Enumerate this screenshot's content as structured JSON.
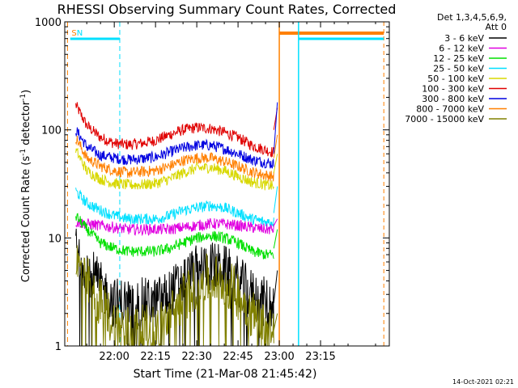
{
  "chart_data": {
    "type": "line",
    "title": "RHESSI Observing Summary Count Rates, Corrected",
    "xlabel": "Start Time (21-Mar-08 21:45:42)",
    "ylabel_parts": {
      "main": "Corrected Count Rate (s",
      "sup1": "-1",
      "mid": " detector",
      "sup2": "-1",
      "end": ")"
    },
    "yscale": "log",
    "ylim": [
      1,
      1000
    ],
    "xlim_minutes": [
      -18,
      100
    ],
    "x_tick_labels": [
      "22:00",
      "22:15",
      "22:30",
      "22:45",
      "23:00",
      "23:15"
    ],
    "x_tick_minutes": [
      0,
      15,
      30,
      45,
      60,
      75
    ],
    "y_tick_labels": [
      "1",
      "10",
      "100",
      "1000"
    ],
    "y_tick_values": [
      1,
      10,
      100,
      1000
    ],
    "timestamp": "14-Oct-2021 02:21",
    "legend": {
      "header": [
        "Det 1,3,4,5,6,9,",
        "Att 0"
      ],
      "entries": [
        {
          "label": "3 - 6 keV",
          "color": "#000000"
        },
        {
          "label": "6 - 12 keV",
          "color": "#e000e0"
        },
        {
          "label": "12 - 25 keV",
          "color": "#00e000"
        },
        {
          "label": "25 - 50 keV",
          "color": "#00e0ff"
        },
        {
          "label": "50 - 100 keV",
          "color": "#d8d800"
        },
        {
          "label": "100 - 300 keV",
          "color": "#e00000"
        },
        {
          "label": "300 - 800 keV",
          "color": "#0000e0"
        },
        {
          "label": "800 - 7000 keV",
          "color": "#ff8000"
        },
        {
          "label": "7000 - 15000 keV",
          "color": "#808000"
        }
      ]
    },
    "flags": [
      {
        "label": "S",
        "color": "#ff8000",
        "x_range_minutes": [
          -17,
          -16
        ]
      },
      {
        "label": "N",
        "color": "#00e0ff",
        "x_range_minutes": [
          -16,
          2
        ]
      }
    ],
    "saa_orange_minutes": [
      60,
      98
    ],
    "night_cyan_minutes": [
      67,
      98
    ],
    "series": [
      {
        "name": "100 - 300 keV",
        "color": "#e00000",
        "points": [
          [
            -14,
            170
          ],
          [
            -10,
            110
          ],
          [
            -5,
            85
          ],
          [
            0,
            75
          ],
          [
            5,
            73
          ],
          [
            10,
            75
          ],
          [
            15,
            80
          ],
          [
            20,
            90
          ],
          [
            25,
            100
          ],
          [
            30,
            105
          ],
          [
            35,
            103
          ],
          [
            40,
            95
          ],
          [
            45,
            85
          ],
          [
            50,
            72
          ],
          [
            55,
            65
          ],
          [
            58,
            62
          ]
        ]
      },
      {
        "name": "300 - 800 keV",
        "color": "#0000e0",
        "points": [
          [
            -14,
            100
          ],
          [
            -10,
            70
          ],
          [
            -5,
            58
          ],
          [
            0,
            55
          ],
          [
            5,
            53
          ],
          [
            10,
            54
          ],
          [
            15,
            56
          ],
          [
            20,
            62
          ],
          [
            25,
            68
          ],
          [
            30,
            72
          ],
          [
            35,
            72
          ],
          [
            40,
            67
          ],
          [
            45,
            60
          ],
          [
            50,
            53
          ],
          [
            55,
            50
          ],
          [
            58,
            48
          ]
        ]
      },
      {
        "name": "800 - 7000 keV",
        "color": "#ff8000",
        "points": [
          [
            -14,
            85
          ],
          [
            -10,
            55
          ],
          [
            -5,
            46
          ],
          [
            0,
            42
          ],
          [
            5,
            40
          ],
          [
            10,
            41
          ],
          [
            15,
            42
          ],
          [
            20,
            46
          ],
          [
            25,
            52
          ],
          [
            30,
            55
          ],
          [
            35,
            55
          ],
          [
            40,
            51
          ],
          [
            45,
            46
          ],
          [
            50,
            41
          ],
          [
            55,
            38
          ],
          [
            58,
            37
          ]
        ]
      },
      {
        "name": "50 - 100 keV",
        "color": "#d8d800",
        "points": [
          [
            -14,
            65
          ],
          [
            -10,
            42
          ],
          [
            -5,
            35
          ],
          [
            0,
            32
          ],
          [
            5,
            31
          ],
          [
            10,
            31
          ],
          [
            15,
            32
          ],
          [
            20,
            35
          ],
          [
            25,
            40
          ],
          [
            30,
            44
          ],
          [
            35,
            45
          ],
          [
            40,
            42
          ],
          [
            45,
            37
          ],
          [
            50,
            33
          ],
          [
            55,
            31
          ],
          [
            58,
            30
          ]
        ]
      },
      {
        "name": "25 - 50 keV",
        "color": "#00e0ff",
        "points": [
          [
            -14,
            27
          ],
          [
            -10,
            21
          ],
          [
            -5,
            18
          ],
          [
            0,
            16
          ],
          [
            5,
            15
          ],
          [
            10,
            15
          ],
          [
            15,
            15
          ],
          [
            20,
            16
          ],
          [
            25,
            18
          ],
          [
            30,
            19
          ],
          [
            35,
            20
          ],
          [
            40,
            19
          ],
          [
            45,
            17
          ],
          [
            50,
            15
          ],
          [
            55,
            14
          ],
          [
            58,
            14
          ]
        ]
      },
      {
        "name": "6 - 12 keV",
        "color": "#e000e0",
        "points": [
          [
            -14,
            14
          ],
          [
            -10,
            13.5
          ],
          [
            -5,
            13
          ],
          [
            0,
            12.5
          ],
          [
            5,
            12
          ],
          [
            10,
            12
          ],
          [
            15,
            12
          ],
          [
            20,
            12
          ],
          [
            25,
            12.5
          ],
          [
            30,
            13
          ],
          [
            35,
            13.5
          ],
          [
            40,
            13.5
          ],
          [
            45,
            13
          ],
          [
            50,
            12.5
          ],
          [
            55,
            12
          ],
          [
            58,
            12
          ]
        ]
      },
      {
        "name": "12 - 25 keV",
        "color": "#00e000",
        "points": [
          [
            -14,
            16
          ],
          [
            -10,
            12
          ],
          [
            -5,
            9
          ],
          [
            0,
            8
          ],
          [
            5,
            7.5
          ],
          [
            10,
            7.5
          ],
          [
            15,
            7.5
          ],
          [
            20,
            8
          ],
          [
            25,
            9
          ],
          [
            30,
            10
          ],
          [
            35,
            10.5
          ],
          [
            40,
            10
          ],
          [
            45,
            9
          ],
          [
            50,
            7.5
          ],
          [
            55,
            7
          ],
          [
            58,
            7
          ]
        ]
      },
      {
        "name": "3 - 6 keV",
        "color": "#000000",
        "points": [
          [
            -14,
            8
          ],
          [
            -10,
            5.5
          ],
          [
            -5,
            3.5
          ],
          [
            0,
            2.5
          ],
          [
            5,
            2.5
          ],
          [
            10,
            2.5
          ],
          [
            15,
            2.5
          ],
          [
            20,
            3
          ],
          [
            25,
            4
          ],
          [
            30,
            5
          ],
          [
            35,
            5.5
          ],
          [
            40,
            5
          ],
          [
            45,
            4
          ],
          [
            50,
            3
          ],
          [
            55,
            2.5
          ],
          [
            58,
            2.5
          ]
        ]
      },
      {
        "name": "7000 - 15000 keV",
        "color": "#808000",
        "points": [
          [
            -14,
            6
          ],
          [
            -10,
            4
          ],
          [
            -5,
            2.5
          ],
          [
            0,
            1.6
          ],
          [
            5,
            1.4
          ],
          [
            10,
            1.4
          ],
          [
            15,
            1.4
          ],
          [
            20,
            1.8
          ],
          [
            25,
            2.8
          ],
          [
            30,
            3.8
          ],
          [
            35,
            4.3
          ],
          [
            40,
            4
          ],
          [
            45,
            3
          ],
          [
            50,
            2
          ],
          [
            55,
            1.5
          ],
          [
            58,
            1.4
          ]
        ]
      }
    ]
  }
}
